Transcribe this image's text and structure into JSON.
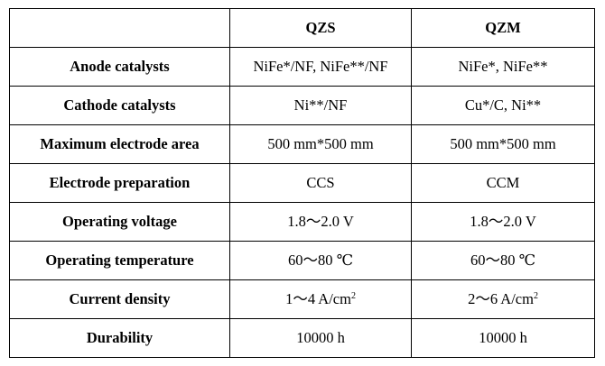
{
  "table": {
    "header": {
      "corner": "",
      "col1": "QZS",
      "col2": "QZM"
    },
    "rows": [
      {
        "label": "Anode catalysts",
        "qzs": "NiFe*/NF, NiFe**/NF",
        "qzm": "NiFe*, NiFe**"
      },
      {
        "label": "Cathode catalysts",
        "qzs": "Ni**/NF",
        "qzm": "Cu*/C, Ni**"
      },
      {
        "label": "Maximum electrode area",
        "qzs": "500 mm*500 mm",
        "qzm": "500 mm*500 mm"
      },
      {
        "label": "Electrode preparation",
        "qzs": "CCS",
        "qzm": "CCM"
      },
      {
        "label": "Operating voltage",
        "qzs": "1.8～2.0 V",
        "qzm": "1.8～2.0 V"
      },
      {
        "label": "Operating temperature",
        "qzs": "60～80 ℃",
        "qzm": "60～80 ℃"
      },
      {
        "label": "Current density",
        "qzs": "1～4 A/cm",
        "qzs_sup": "2",
        "qzm": "2～6 A/cm",
        "qzm_sup": "2"
      },
      {
        "label": "Durability",
        "qzs": "10000 h",
        "qzm": "10000 h"
      }
    ]
  }
}
